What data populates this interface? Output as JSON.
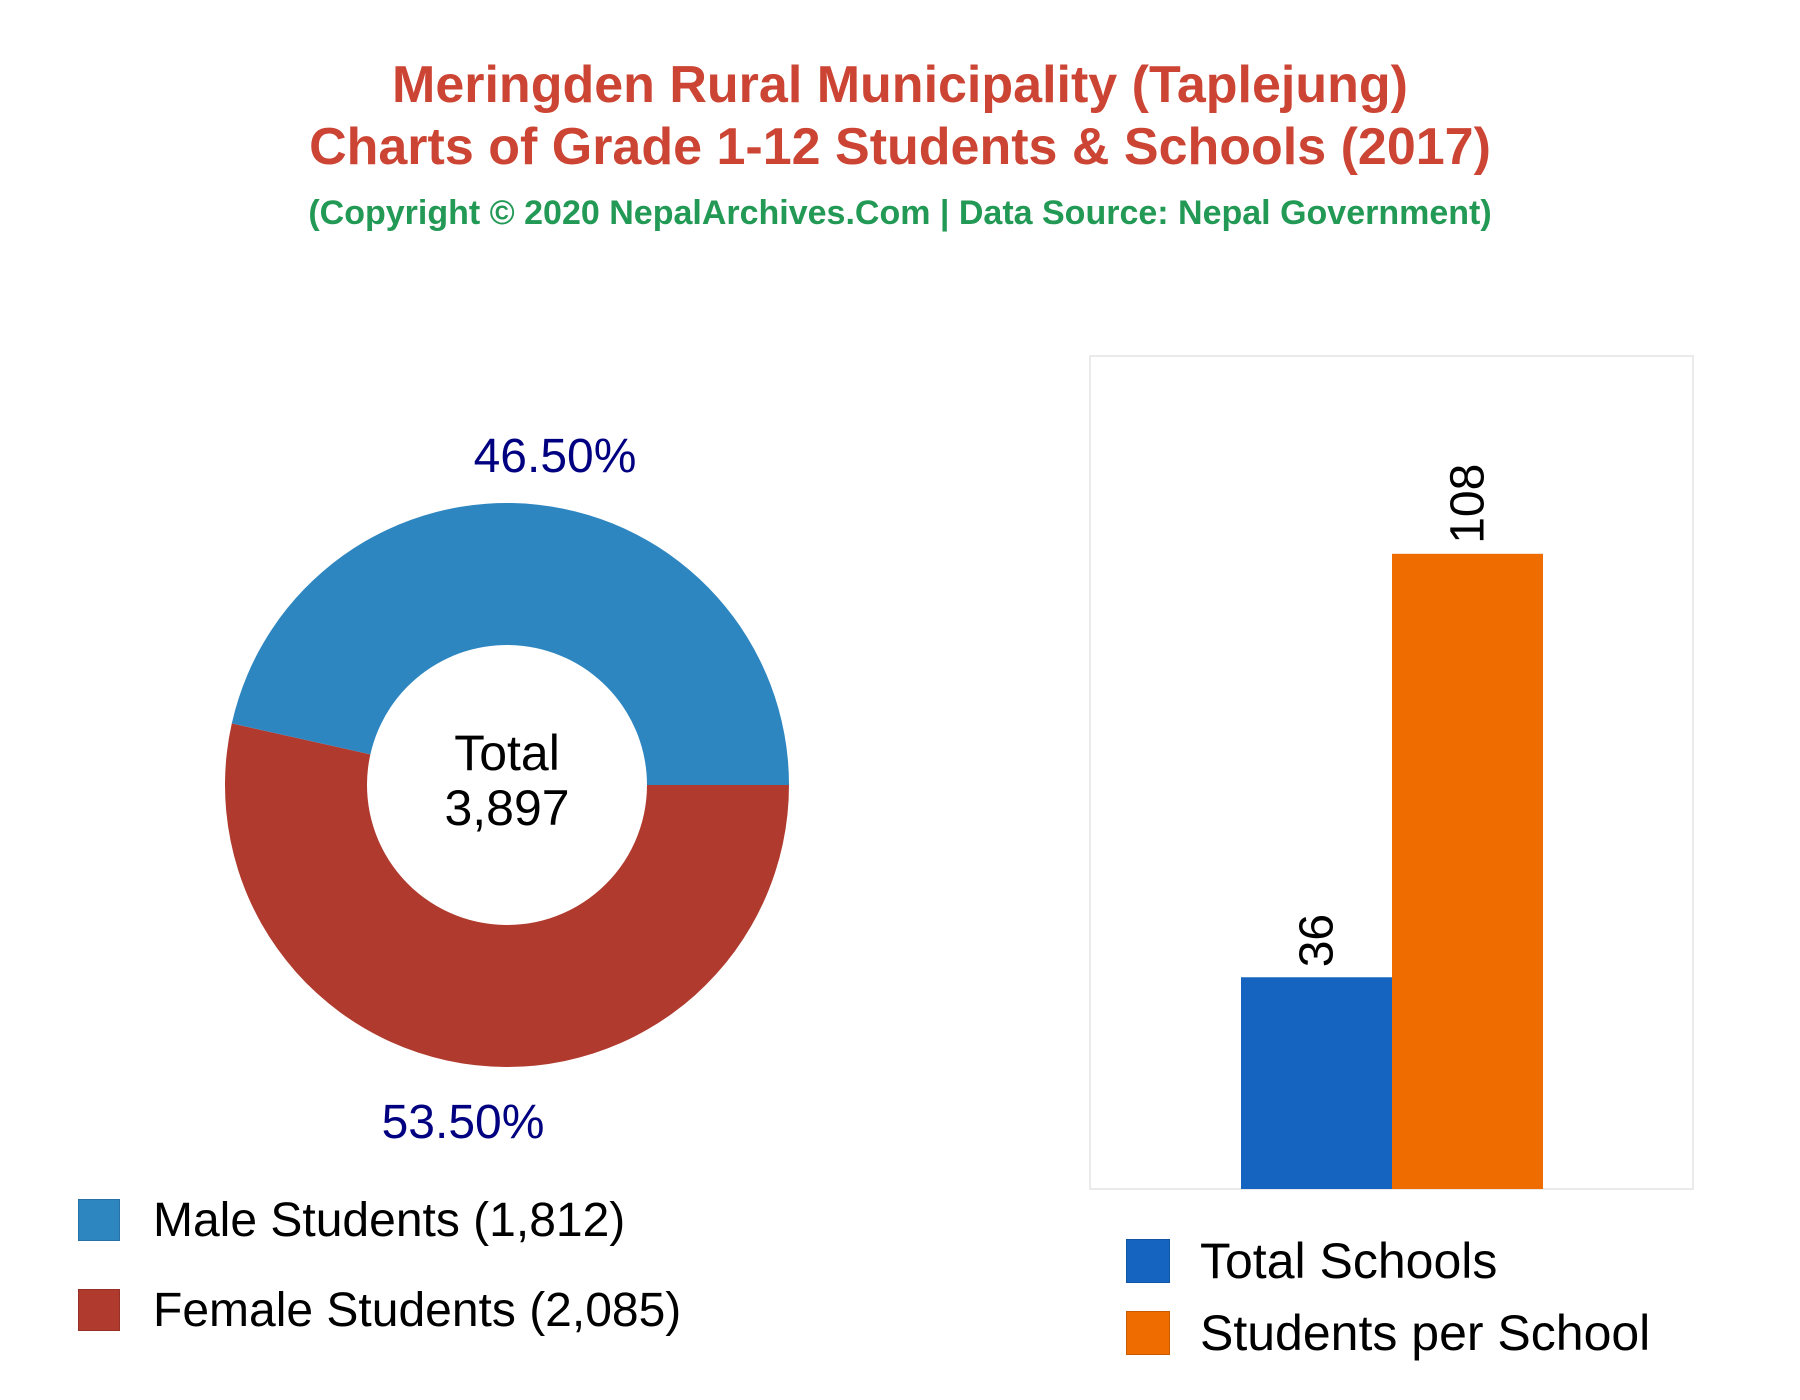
{
  "header": {
    "title_line1": "Meringden Rural Municipality (Taplejung)",
    "title_line2": "Charts of Grade 1-12 Students & Schools (2017)",
    "subtitle": "(Copyright © 2020 NepalArchives.Com | Data Source: Nepal Government)",
    "title_color": "#cc4433",
    "subtitle_color": "#229955"
  },
  "chart_data": [
    {
      "type": "pie",
      "style": "donut",
      "center_label": "Total",
      "center_value": "3,897",
      "slices": [
        {
          "name": "Male Students",
          "value": 1812,
          "value_label": "1,812",
          "percent_label": "46.50%",
          "color": "#2e86c1"
        },
        {
          "name": "Female Students",
          "value": 2085,
          "value_label": "2,085",
          "percent_label": "53.50%",
          "color": "#b03a2e"
        }
      ],
      "legend_labels": [
        "Male Students (1,812)",
        "Female Students (2,085)"
      ],
      "percent_label_color": "#000080",
      "legend_position": "bottom"
    },
    {
      "type": "bar",
      "categories": [
        "Total Schools",
        "Students per School"
      ],
      "values": [
        36,
        108
      ],
      "data_labels": [
        "36",
        "108"
      ],
      "colors": [
        "#1565c0",
        "#ef6c00"
      ],
      "ylim": [
        0,
        135
      ],
      "grid": false,
      "legend_position": "bottom"
    }
  ]
}
